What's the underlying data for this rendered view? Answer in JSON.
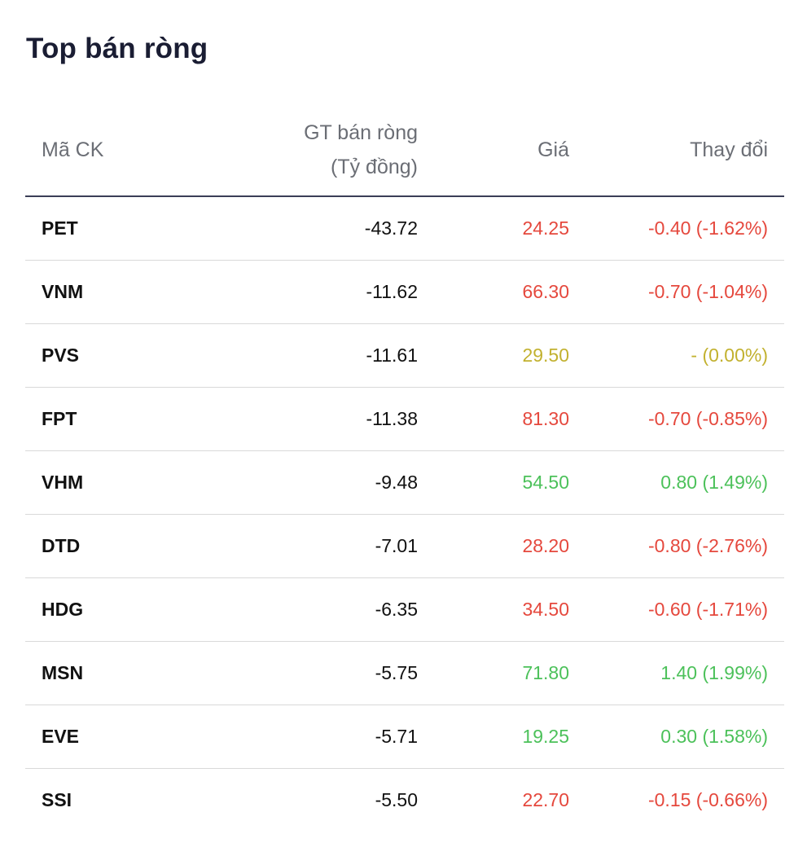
{
  "title": "Top bán ròng",
  "colors": {
    "down": "#e5483d",
    "up": "#4cc15a",
    "flat": "#c2b12f"
  },
  "columns": {
    "code": "Mã CK",
    "value_line1": "GT bán ròng",
    "value_line2": "(Tỷ đồng)",
    "price": "Giá",
    "change": "Thay đổi"
  },
  "rows": [
    {
      "code": "PET",
      "value": "-43.72",
      "price": "24.25",
      "change": "-0.40 (-1.62%)",
      "trend": "down"
    },
    {
      "code": "VNM",
      "value": "-11.62",
      "price": "66.30",
      "change": "-0.70 (-1.04%)",
      "trend": "down"
    },
    {
      "code": "PVS",
      "value": "-11.61",
      "price": "29.50",
      "change": "- (0.00%)",
      "trend": "flat"
    },
    {
      "code": "FPT",
      "value": "-11.38",
      "price": "81.30",
      "change": "-0.70 (-0.85%)",
      "trend": "down"
    },
    {
      "code": "VHM",
      "value": "-9.48",
      "price": "54.50",
      "change": "0.80 (1.49%)",
      "trend": "up"
    },
    {
      "code": "DTD",
      "value": "-7.01",
      "price": "28.20",
      "change": "-0.80 (-2.76%)",
      "trend": "down"
    },
    {
      "code": "HDG",
      "value": "-6.35",
      "price": "34.50",
      "change": "-0.60 (-1.71%)",
      "trend": "down"
    },
    {
      "code": "MSN",
      "value": "-5.75",
      "price": "71.80",
      "change": "1.40 (1.99%)",
      "trend": "up"
    },
    {
      "code": "EVE",
      "value": "-5.71",
      "price": "19.25",
      "change": "0.30 (1.58%)",
      "trend": "up"
    },
    {
      "code": "SSI",
      "value": "-5.50",
      "price": "22.70",
      "change": "-0.15 (-0.66%)",
      "trend": "down"
    }
  ]
}
